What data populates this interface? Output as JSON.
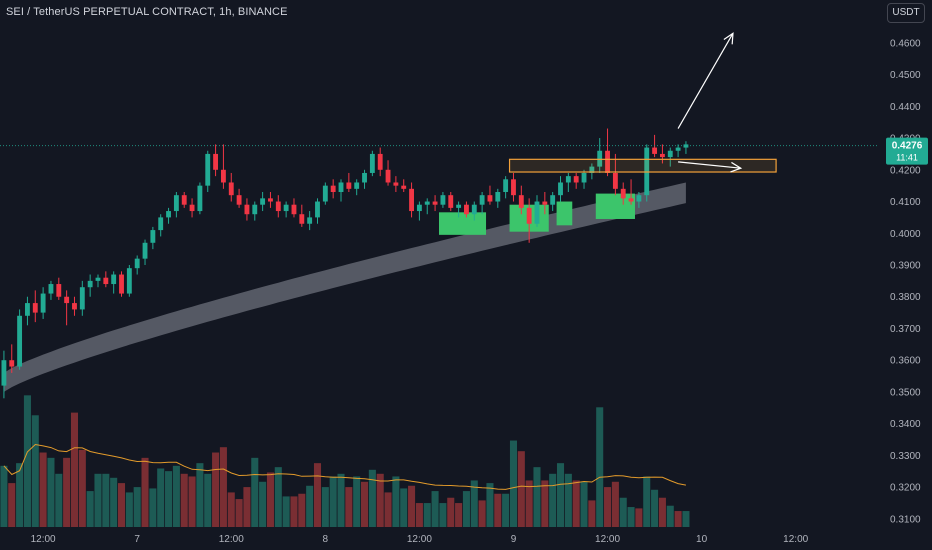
{
  "header": {
    "title": "SEI / TetherUS PERPETUAL CONTRACT, 1h, BINANCE"
  },
  "currency_button": {
    "label": "USDT"
  },
  "colors": {
    "up": "#22ab94",
    "down": "#f23645",
    "vol_up": "#1d5b55",
    "vol_down": "#7a2e33",
    "band": "#5d606b",
    "ma": "#e39b2b",
    "zone": "#f2a13a",
    "highlight": "#3cc56b",
    "tag": "#22ab94"
  },
  "chart_data": {
    "type": "candlestick",
    "title": "SEI / TetherUS PERPETUAL CONTRACT, 1h, BINANCE",
    "y_range": [
      0.3065,
      0.4735
    ],
    "y_ticks": [
      0.31,
      0.32,
      0.33,
      0.34,
      0.35,
      0.36,
      0.37,
      0.38,
      0.39,
      0.4,
      0.41,
      0.42,
      0.43,
      0.44,
      0.45,
      0.46
    ],
    "y_tick_labels": [
      "0.3100",
      "0.3200",
      "0.3300",
      "0.3400",
      "0.3500",
      "0.3600",
      "0.3700",
      "0.3800",
      "0.3900",
      "0.4000",
      "0.4100",
      "0.4200",
      "0.4300",
      "0.4400",
      "0.4500",
      "0.4600"
    ],
    "x_ticks": [
      {
        "label": "12:00",
        "index": 5
      },
      {
        "label": "7",
        "index": 17
      },
      {
        "label": "12:00",
        "index": 29
      },
      {
        "label": "8",
        "index": 41
      },
      {
        "label": "12:00",
        "index": 53
      },
      {
        "label": "9",
        "index": 65
      },
      {
        "label": "12:00",
        "index": 77
      },
      {
        "label": "10",
        "index": 89
      },
      {
        "label": "12:00",
        "index": 101
      }
    ],
    "index_range": [
      -0.5,
      111.5
    ],
    "last_price": {
      "value": "0.4276",
      "countdown": "11:41",
      "price": 0.4276
    },
    "candles": [
      [
        0.352,
        0.363,
        0.348,
        0.36
      ],
      [
        0.36,
        0.365,
        0.356,
        0.358
      ],
      [
        0.358,
        0.376,
        0.357,
        0.374
      ],
      [
        0.374,
        0.38,
        0.371,
        0.378
      ],
      [
        0.378,
        0.382,
        0.372,
        0.375
      ],
      [
        0.375,
        0.383,
        0.373,
        0.381
      ],
      [
        0.381,
        0.385,
        0.379,
        0.384
      ],
      [
        0.384,
        0.386,
        0.379,
        0.38
      ],
      [
        0.38,
        0.382,
        0.371,
        0.378
      ],
      [
        0.378,
        0.38,
        0.374,
        0.376
      ],
      [
        0.376,
        0.385,
        0.374,
        0.383
      ],
      [
        0.383,
        0.387,
        0.38,
        0.385
      ],
      [
        0.385,
        0.387,
        0.383,
        0.386
      ],
      [
        0.386,
        0.388,
        0.383,
        0.384
      ],
      [
        0.384,
        0.388,
        0.381,
        0.387
      ],
      [
        0.387,
        0.388,
        0.38,
        0.381
      ],
      [
        0.381,
        0.39,
        0.38,
        0.389
      ],
      [
        0.389,
        0.393,
        0.387,
        0.392
      ],
      [
        0.392,
        0.398,
        0.39,
        0.397
      ],
      [
        0.397,
        0.402,
        0.395,
        0.401
      ],
      [
        0.401,
        0.406,
        0.399,
        0.405
      ],
      [
        0.405,
        0.408,
        0.403,
        0.407
      ],
      [
        0.407,
        0.413,
        0.405,
        0.412
      ],
      [
        0.412,
        0.413,
        0.408,
        0.409
      ],
      [
        0.409,
        0.411,
        0.405,
        0.407
      ],
      [
        0.407,
        0.416,
        0.406,
        0.415
      ],
      [
        0.415,
        0.426,
        0.413,
        0.425
      ],
      [
        0.425,
        0.428,
        0.418,
        0.42
      ],
      [
        0.42,
        0.428,
        0.414,
        0.416
      ],
      [
        0.416,
        0.419,
        0.41,
        0.412
      ],
      [
        0.412,
        0.414,
        0.408,
        0.409
      ],
      [
        0.409,
        0.411,
        0.404,
        0.406
      ],
      [
        0.406,
        0.41,
        0.404,
        0.409
      ],
      [
        0.409,
        0.413,
        0.407,
        0.411
      ],
      [
        0.411,
        0.413,
        0.408,
        0.41
      ],
      [
        0.41,
        0.412,
        0.405,
        0.407
      ],
      [
        0.407,
        0.41,
        0.405,
        0.409
      ],
      [
        0.409,
        0.411,
        0.405,
        0.406
      ],
      [
        0.406,
        0.409,
        0.402,
        0.403
      ],
      [
        0.403,
        0.407,
        0.401,
        0.405
      ],
      [
        0.405,
        0.411,
        0.403,
        0.41
      ],
      [
        0.41,
        0.416,
        0.409,
        0.415
      ],
      [
        0.415,
        0.417,
        0.411,
        0.413
      ],
      [
        0.413,
        0.417,
        0.41,
        0.416
      ],
      [
        0.416,
        0.419,
        0.413,
        0.414
      ],
      [
        0.414,
        0.417,
        0.412,
        0.416
      ],
      [
        0.416,
        0.42,
        0.414,
        0.419
      ],
      [
        0.419,
        0.426,
        0.418,
        0.425
      ],
      [
        0.425,
        0.427,
        0.418,
        0.42
      ],
      [
        0.42,
        0.423,
        0.415,
        0.416
      ],
      [
        0.416,
        0.418,
        0.413,
        0.415
      ],
      [
        0.415,
        0.417,
        0.413,
        0.414
      ],
      [
        0.414,
        0.416,
        0.405,
        0.407
      ],
      [
        0.407,
        0.41,
        0.404,
        0.409
      ],
      [
        0.409,
        0.411,
        0.406,
        0.41
      ],
      [
        0.41,
        0.412,
        0.407,
        0.409
      ],
      [
        0.409,
        0.413,
        0.408,
        0.412
      ],
      [
        0.412,
        0.413,
        0.407,
        0.408
      ],
      [
        0.408,
        0.41,
        0.405,
        0.409
      ],
      [
        0.409,
        0.41,
        0.405,
        0.406
      ],
      [
        0.406,
        0.41,
        0.404,
        0.409
      ],
      [
        0.409,
        0.413,
        0.406,
        0.412
      ],
      [
        0.412,
        0.415,
        0.409,
        0.41
      ],
      [
        0.41,
        0.414,
        0.408,
        0.413
      ],
      [
        0.413,
        0.418,
        0.411,
        0.417
      ],
      [
        0.417,
        0.419,
        0.41,
        0.412
      ],
      [
        0.412,
        0.415,
        0.406,
        0.408
      ],
      [
        0.408,
        0.411,
        0.397,
        0.403
      ],
      [
        0.403,
        0.412,
        0.402,
        0.41
      ],
      [
        0.41,
        0.413,
        0.406,
        0.409
      ],
      [
        0.409,
        0.413,
        0.407,
        0.412
      ],
      [
        0.412,
        0.418,
        0.41,
        0.416
      ],
      [
        0.416,
        0.419,
        0.413,
        0.418
      ],
      [
        0.418,
        0.419,
        0.414,
        0.416
      ],
      [
        0.416,
        0.42,
        0.414,
        0.419
      ],
      [
        0.419,
        0.422,
        0.417,
        0.421
      ],
      [
        0.421,
        0.43,
        0.419,
        0.426
      ],
      [
        0.426,
        0.433,
        0.418,
        0.419
      ],
      [
        0.419,
        0.425,
        0.412,
        0.414
      ],
      [
        0.414,
        0.416,
        0.409,
        0.411
      ],
      [
        0.411,
        0.417,
        0.409,
        0.41
      ],
      [
        0.41,
        0.413,
        0.408,
        0.412
      ],
      [
        0.412,
        0.428,
        0.41,
        0.427
      ],
      [
        0.427,
        0.431,
        0.424,
        0.425
      ],
      [
        0.425,
        0.428,
        0.422,
        0.424
      ],
      [
        0.424,
        0.427,
        0.421,
        0.426
      ],
      [
        0.426,
        0.428,
        0.424,
        0.427
      ],
      [
        0.427,
        0.429,
        0.425,
        0.428
      ]
    ],
    "volume": [
      [
        46,
        "u"
      ],
      [
        33,
        "d"
      ],
      [
        48,
        "u"
      ],
      [
        99,
        "u"
      ],
      [
        84,
        "u"
      ],
      [
        56,
        "d"
      ],
      [
        52,
        "u"
      ],
      [
        40,
        "u"
      ],
      [
        52,
        "d"
      ],
      [
        86,
        "d"
      ],
      [
        58,
        "d"
      ],
      [
        27,
        "u"
      ],
      [
        40,
        "u"
      ],
      [
        40,
        "u"
      ],
      [
        37,
        "u"
      ],
      [
        33,
        "d"
      ],
      [
        26,
        "u"
      ],
      [
        30,
        "u"
      ],
      [
        52,
        "d"
      ],
      [
        29,
        "u"
      ],
      [
        44,
        "u"
      ],
      [
        42,
        "u"
      ],
      [
        46,
        "u"
      ],
      [
        40,
        "d"
      ],
      [
        38,
        "d"
      ],
      [
        48,
        "u"
      ],
      [
        40,
        "u"
      ],
      [
        56,
        "d"
      ],
      [
        60,
        "d"
      ],
      [
        26,
        "d"
      ],
      [
        21,
        "d"
      ],
      [
        30,
        "d"
      ],
      [
        52,
        "u"
      ],
      [
        34,
        "u"
      ],
      [
        41,
        "d"
      ],
      [
        45,
        "u"
      ],
      [
        23,
        "u"
      ],
      [
        23,
        "d"
      ],
      [
        25,
        "d"
      ],
      [
        31,
        "u"
      ],
      [
        48,
        "d"
      ],
      [
        30,
        "u"
      ],
      [
        38,
        "u"
      ],
      [
        40,
        "u"
      ],
      [
        30,
        "d"
      ],
      [
        38,
        "u"
      ],
      [
        34,
        "d"
      ],
      [
        43,
        "u"
      ],
      [
        40,
        "d"
      ],
      [
        26,
        "d"
      ],
      [
        38,
        "u"
      ],
      [
        29,
        "u"
      ],
      [
        31,
        "d"
      ],
      [
        18,
        "d"
      ],
      [
        18,
        "u"
      ],
      [
        27,
        "u"
      ],
      [
        18,
        "u"
      ],
      [
        22,
        "d"
      ],
      [
        18,
        "d"
      ],
      [
        27,
        "u"
      ],
      [
        35,
        "u"
      ],
      [
        20,
        "d"
      ],
      [
        33,
        "u"
      ],
      [
        25,
        "d"
      ],
      [
        25,
        "u"
      ],
      [
        65,
        "u"
      ],
      [
        57,
        "d"
      ],
      [
        35,
        "d"
      ],
      [
        45,
        "u"
      ],
      [
        35,
        "d"
      ],
      [
        40,
        "u"
      ],
      [
        48,
        "u"
      ],
      [
        40,
        "u"
      ],
      [
        35,
        "d"
      ],
      [
        34,
        "u"
      ],
      [
        20,
        "d"
      ],
      [
        90,
        "u"
      ],
      [
        30,
        "d"
      ],
      [
        34,
        "d"
      ],
      [
        22,
        "u"
      ],
      [
        15,
        "u"
      ],
      [
        14,
        "d"
      ],
      [
        38,
        "u"
      ],
      [
        28,
        "u"
      ],
      [
        22,
        "d"
      ],
      [
        16,
        "u"
      ],
      [
        12,
        "d"
      ],
      [
        12,
        "u"
      ]
    ],
    "ema_band": {
      "start": [
        0.35,
        0.356
      ],
      "end": [
        0.4095,
        0.416
      ]
    },
    "zone": {
      "low": 0.4193,
      "high": 0.4233,
      "start_index": 65,
      "end_index": 99
    },
    "highlight_boxes": [
      {
        "start_index": 56,
        "end_index": 61,
        "low": 0.3995,
        "high": 0.4066
      },
      {
        "start_index": 65,
        "end_index": 69,
        "low": 0.4005,
        "high": 0.409
      },
      {
        "start_index": 71,
        "end_index": 72,
        "low": 0.4025,
        "high": 0.41
      },
      {
        "start_index": 76,
        "end_index": 80,
        "low": 0.4045,
        "high": 0.4125
      }
    ],
    "arrows": [
      {
        "from_index": 86,
        "from_price": 0.4225,
        "to_index": 94,
        "to_price": 0.4205
      },
      {
        "from_index": 86,
        "from_price": 0.433,
        "to_index": 93,
        "to_price": 0.463
      }
    ],
    "grid": false,
    "legend": "none"
  }
}
